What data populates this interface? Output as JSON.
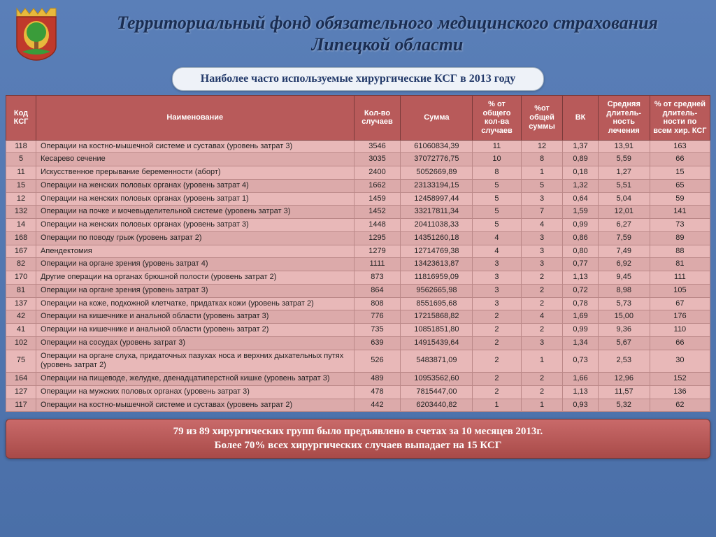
{
  "header": {
    "title_line1": "Территориальный фонд обязательного медицинского страхования",
    "title_line2": "Липецкой области"
  },
  "subtitle": "Наиболее часто используемые хирургические КСГ в 2013 году",
  "table": {
    "columns": [
      "Код КСГ",
      "Наименование",
      "Кол-во случаев",
      "Сумма",
      "% от общего кол-ва случаев",
      "%от общей суммы",
      "ВК",
      "Средняя длитель-ность лечения",
      "% от средней длитель-ности по всем хир. КСГ"
    ],
    "rows": [
      [
        "118",
        "Операции на костно-мышечной системе и суставах (уровень затрат 3)",
        "3546",
        "61060834,39",
        "11",
        "12",
        "1,37",
        "13,91",
        "163"
      ],
      [
        "5",
        "Кесарево сечение",
        "3035",
        "37072776,75",
        "10",
        "8",
        "0,89",
        "5,59",
        "66"
      ],
      [
        "11",
        "Искусственное прерывание беременности (аборт)",
        "2400",
        "5052669,89",
        "8",
        "1",
        "0,18",
        "1,27",
        "15"
      ],
      [
        "15",
        "Операции на женских половых органах (уровень затрат 4)",
        "1662",
        "23133194,15",
        "5",
        "5",
        "1,32",
        "5,51",
        "65"
      ],
      [
        "12",
        "Операции на женских половых органах (уровень затрат 1)",
        "1459",
        "12458997,44",
        "5",
        "3",
        "0,64",
        "5,04",
        "59"
      ],
      [
        "132",
        "Операции на почке и мочевыделительной системе (уровень затрат 3)",
        "1452",
        "33217811,34",
        "5",
        "7",
        "1,59",
        "12,01",
        "141"
      ],
      [
        "14",
        "Операции на женских половых органах (уровень затрат 3)",
        "1448",
        "20411038,33",
        "5",
        "4",
        "0,99",
        "6,27",
        "73"
      ],
      [
        "168",
        "Операции по поводу грыж (уровень затрат 2)",
        "1295",
        "14351260,18",
        "4",
        "3",
        "0,86",
        "7,59",
        "89"
      ],
      [
        "167",
        "Апендектомия",
        "1279",
        "12714769,38",
        "4",
        "3",
        "0,80",
        "7,49",
        "88"
      ],
      [
        "82",
        "Операции на органе зрения (уровень затрат 4)",
        "1111",
        "13423613,87",
        "3",
        "3",
        "0,77",
        "6,92",
        "81"
      ],
      [
        "170",
        "Другие операции на органах брюшной полости (уровень затрат 2)",
        "873",
        "11816959,09",
        "3",
        "2",
        "1,13",
        "9,45",
        "111"
      ],
      [
        "81",
        "Операции на органе зрения (уровень затрат 3)",
        "864",
        "9562665,98",
        "3",
        "2",
        "0,72",
        "8,98",
        "105"
      ],
      [
        "137",
        "Операции на коже, подкожной клетчатке, придатках кожи (уровень затрат 2)",
        "808",
        "8551695,68",
        "3",
        "2",
        "0,78",
        "5,73",
        "67"
      ],
      [
        "42",
        "Операции на кишечнике и анальной области (уровень затрат 3)",
        "776",
        "17215868,82",
        "2",
        "4",
        "1,69",
        "15,00",
        "176"
      ],
      [
        "41",
        "Операции на кишечнике и анальной области (уровень затрат 2)",
        "735",
        "10851851,80",
        "2",
        "2",
        "0,99",
        "9,36",
        "110"
      ],
      [
        "102",
        "Операции на сосудах (уровень затрат 3)",
        "639",
        "14915439,64",
        "2",
        "3",
        "1,34",
        "5,67",
        "66"
      ],
      [
        "75",
        "Операции на органе слуха, придаточных пазухах носа и верхних дыхательных путях (уровень затрат 2)",
        "526",
        "5483871,09",
        "2",
        "1",
        "0,73",
        "2,53",
        "30"
      ],
      [
        "164",
        "Операции на пищеводе, желудке, двенадцатиперстной кишке (уровень затрат 3)",
        "489",
        "10953562,60",
        "2",
        "2",
        "1,66",
        "12,96",
        "152"
      ],
      [
        "127",
        "Операции на мужских половых органах (уровень затрат 3)",
        "478",
        "7815447,00",
        "2",
        "2",
        "1,13",
        "11,57",
        "136"
      ],
      [
        "117",
        "Операции на костно-мышечной системе и суставах (уровень затрат 2)",
        "442",
        "6203440,82",
        "1",
        "1",
        "0,93",
        "5,32",
        "62"
      ]
    ]
  },
  "footer": {
    "line1": "79 из 89 хирургических групп было предъявлено в счетах за 10 месяцев 2013г.",
    "line2": "Более 70% всех хирургических случаев выпадает на 15 КСГ"
  },
  "colors": {
    "bg_top": "#5a7fb8",
    "bg_bottom": "#4a6fa8",
    "title_text": "#1a2d52",
    "subtitle_bg": "#eef2f8",
    "subtitle_text": "#233a6a",
    "th_bg": "#b85a5a",
    "th_border": "#7a3a3a",
    "td_bg": "#e8b8b8",
    "td_bg_alt": "#dcaaaa",
    "td_border": "#bb8888",
    "footer_top": "#c96a6a",
    "footer_bottom": "#a84a48"
  },
  "fonts": {
    "title_size_pt": 20,
    "subtitle_size_pt": 12,
    "th_size_pt": 8,
    "td_size_pt": 8,
    "footer_size_pt": 11
  }
}
